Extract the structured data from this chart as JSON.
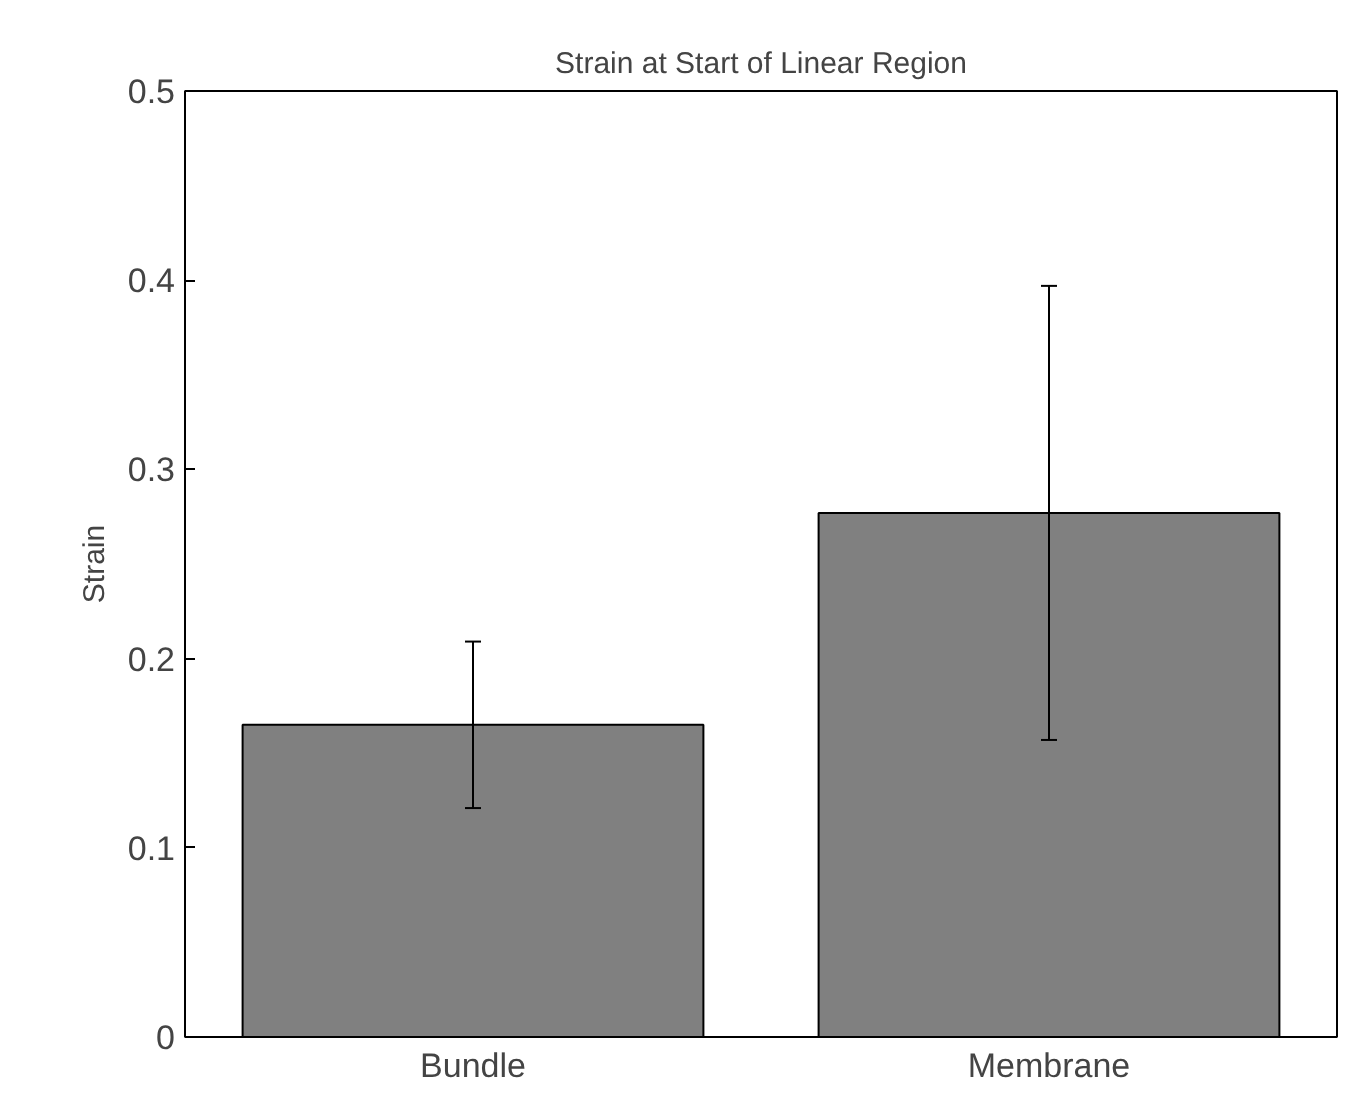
{
  "chart_data": {
    "type": "bar",
    "title": "Strain at Start of Linear Region",
    "ylabel": "Strain",
    "categories": [
      "Bundle",
      "Membrane"
    ],
    "values": [
      0.165,
      0.277
    ],
    "errors": [
      0.044,
      0.12
    ],
    "color": "#808080",
    "ylim": [
      0,
      0.5
    ],
    "yticks": [
      0,
      0.1,
      0.2,
      0.3,
      0.4,
      0.5
    ],
    "grid": false
  }
}
